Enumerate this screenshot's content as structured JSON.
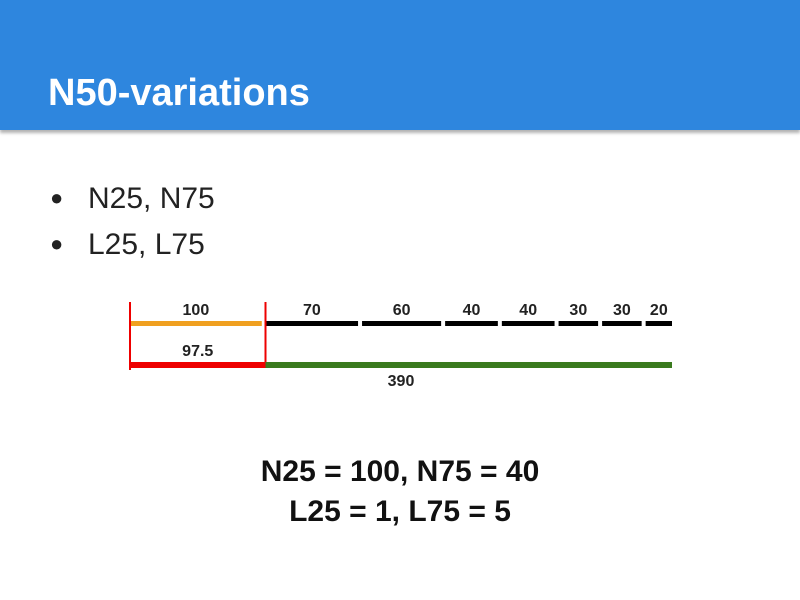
{
  "header": {
    "title": "N50-variations"
  },
  "bullets": [
    "N25, N75",
    "L25, L75"
  ],
  "diagram": {
    "contigs": [
      100,
      70,
      60,
      40,
      40,
      30,
      30,
      20
    ],
    "half": 97.5,
    "total": 390
  },
  "results": [
    "N25 = 100, N75 = 40",
    "L25 = 1, L75 = 5"
  ]
}
